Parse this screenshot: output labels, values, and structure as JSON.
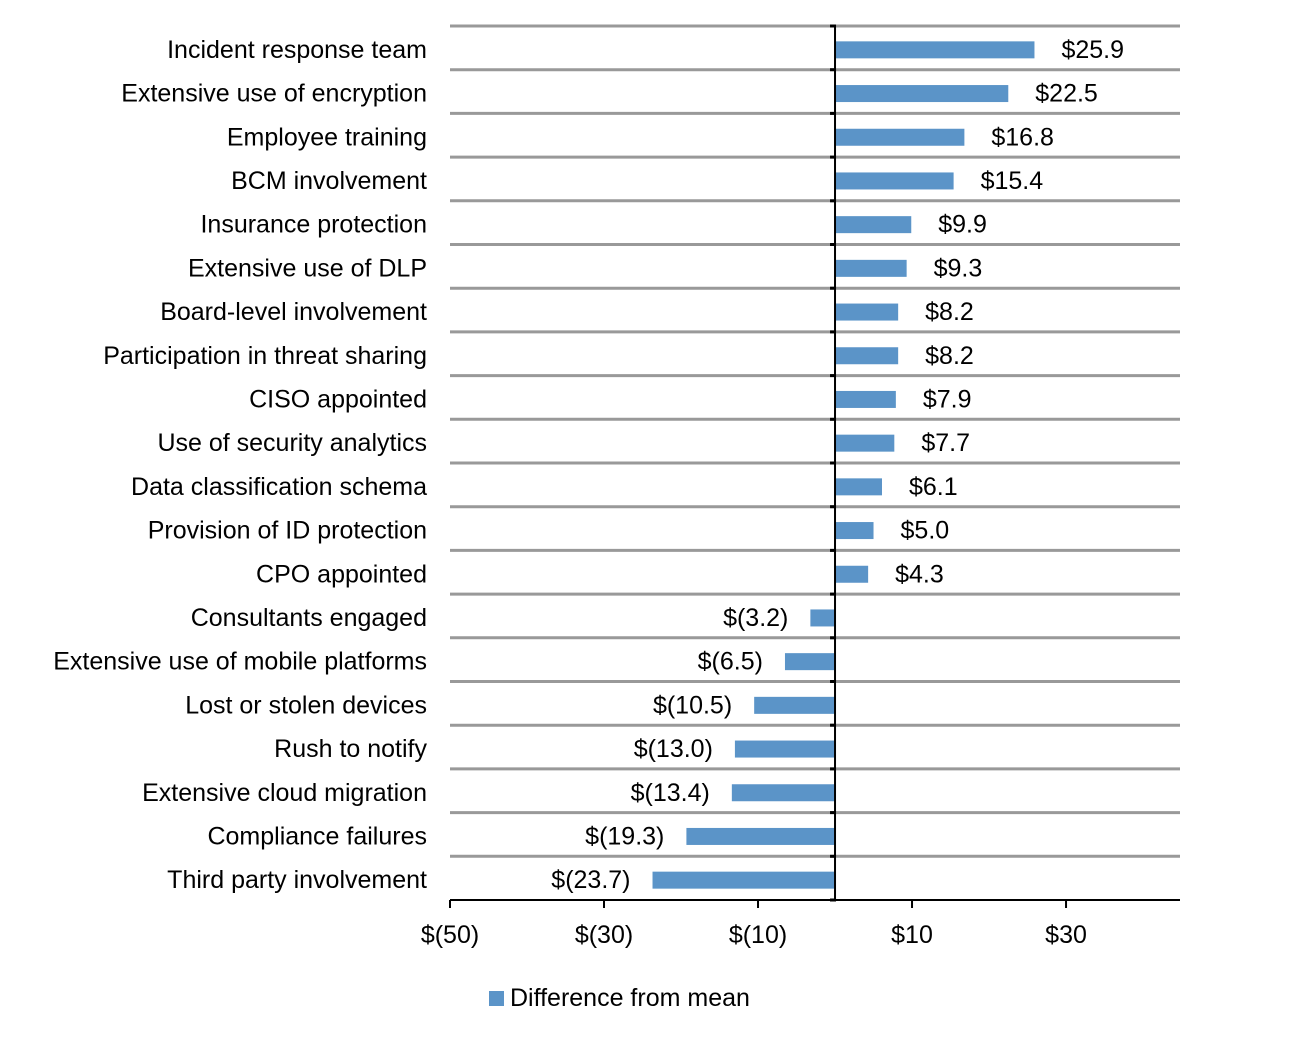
{
  "chart_data": {
    "type": "bar",
    "orientation": "horizontal",
    "title": "",
    "xlabel": "",
    "ylabel": "",
    "categories": [
      "Incident response team",
      "Extensive use of encryption",
      "Employee training",
      "BCM involvement",
      "Insurance protection",
      "Extensive use of DLP",
      "Board-level involvement",
      "Participation in threat sharing",
      "CISO appointed",
      "Use of security analytics",
      "Data classification schema",
      "Provision of ID protection",
      "CPO appointed",
      "Consultants engaged",
      "Extensive use of mobile platforms",
      "Lost or stolen devices",
      "Rush to notify",
      "Extensive cloud migration",
      "Compliance failures",
      "Third party involvement"
    ],
    "series": [
      {
        "name": "Difference from mean",
        "color": "#5B94C8",
        "values": [
          25.9,
          22.5,
          16.8,
          15.4,
          9.9,
          9.3,
          8.2,
          8.2,
          7.9,
          7.7,
          6.1,
          5.0,
          4.3,
          -3.2,
          -6.5,
          -10.5,
          -13.0,
          -13.4,
          -19.3,
          -23.7
        ],
        "data_labels": [
          "$25.9",
          "$22.5",
          "$16.8",
          "$15.4",
          "$9.9",
          "$9.3",
          "$8.2",
          "$8.2",
          "$7.9",
          "$7.7",
          "$6.1",
          "$5.0",
          "$4.3",
          "$(3.2)",
          "$(6.5)",
          "$(10.5)",
          "$(13.0)",
          "$(13.4)",
          "$(19.3)",
          "$(23.7)"
        ]
      }
    ],
    "xlim": [
      -50,
      44.8
    ],
    "x_ticks": [
      -50,
      -30,
      -10,
      10,
      30
    ],
    "x_tick_labels": [
      "$(50)",
      "$(30)",
      "$(10)",
      "$10",
      "$30"
    ],
    "grid": "horizontal category separators",
    "legend": {
      "position": "bottom",
      "entries": [
        "Difference from mean"
      ]
    }
  }
}
